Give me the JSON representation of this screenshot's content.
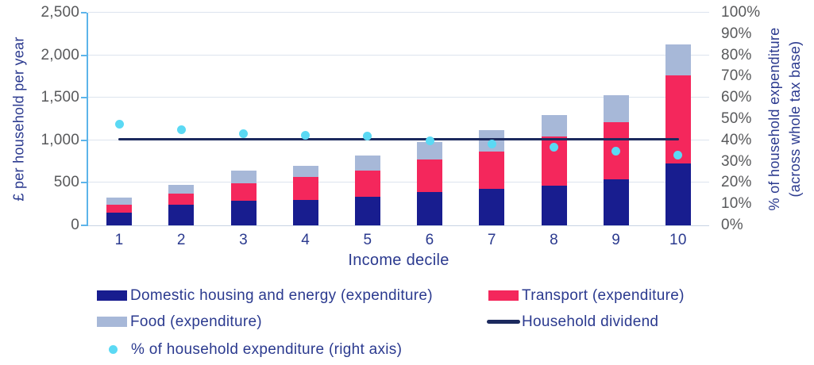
{
  "chart_data": {
    "type": "combo-stacked-bar-line-scatter",
    "x": {
      "label": "Income decile",
      "categories": [
        "1",
        "2",
        "3",
        "4",
        "5",
        "6",
        "7",
        "8",
        "9",
        "10"
      ]
    },
    "y_left": {
      "label": "£ per household per year",
      "min": 0,
      "max": 2500,
      "tick_values": [
        2500,
        2000,
        1500,
        1000,
        500,
        0
      ],
      "tick_labels": [
        "2,500",
        "2,000",
        "1,500",
        "1,000",
        "500",
        "0"
      ],
      "grid": true
    },
    "y_right": {
      "label_line1": "% of household expenditure",
      "label_line2": "(across whole tax base)",
      "min": 0,
      "max": 100,
      "tick_values": [
        100,
        90,
        80,
        70,
        60,
        50,
        40,
        30,
        20,
        10,
        0
      ],
      "tick_labels": [
        "100%",
        "90%",
        "80%",
        "70%",
        "60%",
        "50%",
        "40%",
        "30%",
        "20%",
        "10%",
        "0%"
      ]
    },
    "series": [
      {
        "key": "housing",
        "name": "Domestic housing and energy (expenditure)",
        "type": "bar-stack",
        "color": "#181d8f",
        "values": [
          150,
          240,
          285,
          295,
          340,
          390,
          430,
          470,
          540,
          730
        ]
      },
      {
        "key": "transport",
        "name": "Transport (expenditure)",
        "type": "bar-stack",
        "color": "#f4275c",
        "values": [
          90,
          130,
          210,
          270,
          305,
          385,
          440,
          575,
          670,
          1030
        ]
      },
      {
        "key": "food",
        "name": "Food (expenditure)",
        "type": "bar-stack",
        "color": "#a7b8d8",
        "values": [
          85,
          105,
          145,
          135,
          175,
          205,
          250,
          255,
          320,
          365
        ]
      },
      {
        "key": "dividend",
        "name": "Household dividend",
        "type": "line",
        "color": "#1c2a5e",
        "value": 1010
      },
      {
        "key": "pct-expenditure",
        "name": "% of household expenditure (right axis)",
        "type": "scatter",
        "axis": "right",
        "color": "#5bd9f4",
        "values_pct": [
          47.4,
          45.0,
          43.0,
          42.2,
          41.8,
          39.8,
          38.1,
          36.6,
          35.0,
          33.0
        ]
      }
    ],
    "colors": {
      "grid": "#dde4ee",
      "baseline": "#c8d4e4",
      "y_axis_line": "#5db4ea",
      "tick_text": "#58595b",
      "navy_text": "#2b3a8f"
    }
  }
}
